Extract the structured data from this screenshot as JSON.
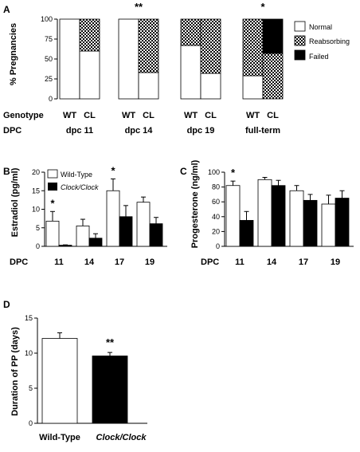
{
  "chart_data": [
    {
      "panel": "A",
      "type": "bar",
      "stacked": true,
      "ylabel": "% Pregnancies",
      "ylim": [
        0,
        100
      ],
      "yticks": [
        "0",
        "25",
        "50",
        "75",
        "100"
      ],
      "row_labels": {
        "genotype": "Genotype",
        "dpc": "DPC"
      },
      "groups": [
        {
          "dpc": "dpc 11",
          "stars": "",
          "bars": [
            {
              "genotype": "WT",
              "normal": 100,
              "reabsorbing": 0,
              "failed": 0
            },
            {
              "genotype": "CL",
              "normal": 60,
              "reabsorbing": 40,
              "failed": 0
            }
          ]
        },
        {
          "dpc": "dpc 14",
          "stars": "**",
          "bars": [
            {
              "genotype": "WT",
              "normal": 100,
              "reabsorbing": 0,
              "failed": 0
            },
            {
              "genotype": "CL",
              "normal": 33,
              "reabsorbing": 67,
              "failed": 0
            }
          ]
        },
        {
          "dpc": "dpc 19",
          "stars": "",
          "bars": [
            {
              "genotype": "WT",
              "normal": 67,
              "reabsorbing": 33,
              "failed": 0
            },
            {
              "genotype": "CL",
              "normal": 32,
              "reabsorbing": 68,
              "failed": 0
            }
          ]
        },
        {
          "dpc": "full-term",
          "stars": "*",
          "bars": [
            {
              "genotype": "WT",
              "normal": 29,
              "reabsorbing": 71,
              "failed": 0
            },
            {
              "genotype": "CL",
              "normal": 0,
              "reabsorbing": 57,
              "failed": 43
            }
          ]
        }
      ],
      "legend": [
        "Normal",
        "Reabsorbing",
        "Failed"
      ],
      "legend_position": "right"
    },
    {
      "panel": "B",
      "type": "bar",
      "ylabel": "Estradiol (pg/ml)",
      "xlabel": "DPC",
      "categories": [
        "11",
        "14",
        "17",
        "19"
      ],
      "ylim": [
        0,
        20
      ],
      "yticks": [
        "0",
        "5",
        "10",
        "15",
        "20"
      ],
      "series": [
        {
          "name": "Wild-Type",
          "values": [
            6.8,
            5.5,
            15.0,
            11.9
          ],
          "errors": [
            2.6,
            1.8,
            3.2,
            1.4
          ]
        },
        {
          "name": "Clock/Clock",
          "values": [
            0.3,
            2.2,
            8.0,
            6.1
          ],
          "errors": [
            0.1,
            1.2,
            3.0,
            1.7
          ]
        }
      ],
      "stars": [
        "*",
        "",
        "*",
        ""
      ],
      "legend_position": "top-left"
    },
    {
      "panel": "C",
      "type": "bar",
      "ylabel": "Progesterone (ng/ml)",
      "xlabel": "DPC",
      "categories": [
        "11",
        "14",
        "17",
        "19"
      ],
      "ylim": [
        0,
        100
      ],
      "yticks": [
        "0",
        "20",
        "40",
        "60",
        "80",
        "100"
      ],
      "series": [
        {
          "name": "Wild-Type",
          "values": [
            82,
            90,
            75,
            57
          ],
          "errors": [
            6,
            3,
            7,
            12
          ]
        },
        {
          "name": "Clock/Clock",
          "values": [
            35,
            82,
            62,
            65
          ],
          "errors": [
            12,
            7,
            8,
            10
          ]
        }
      ],
      "stars": [
        "*",
        "",
        "",
        ""
      ]
    },
    {
      "panel": "D",
      "type": "bar",
      "ylabel": "Duration of PP (days)",
      "ylim": [
        0,
        15
      ],
      "yticks": [
        "0",
        "5",
        "10",
        "15"
      ],
      "categories": [
        "Wild-Type",
        "Clock/Clock"
      ],
      "values": [
        12.1,
        9.6
      ],
      "errors": [
        0.8,
        0.5
      ],
      "stars": [
        "",
        "**"
      ]
    }
  ]
}
